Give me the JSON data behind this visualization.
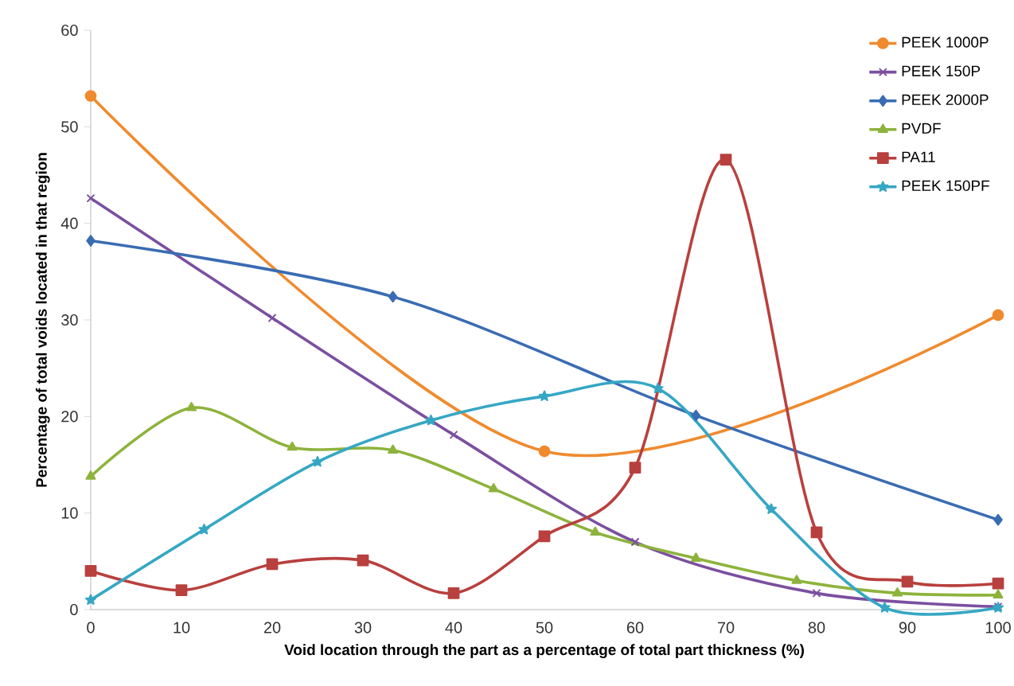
{
  "chart_data": {
    "type": "line",
    "xlabel": "Void location through the part as a percentage of total part thickness (%)",
    "ylabel": "Percentage of total voids located in that region",
    "xlim": [
      0,
      100
    ],
    "ylim": [
      0,
      60
    ],
    "xticks": [
      0,
      10,
      20,
      30,
      40,
      50,
      60,
      70,
      80,
      90,
      100
    ],
    "yticks": [
      0,
      10,
      20,
      30,
      40,
      50,
      60
    ],
    "grid": false,
    "legend": "top right",
    "series": [
      {
        "name": "PEEK 1000P",
        "color": "#f08a2e",
        "marker": "circle",
        "x": [
          0,
          50,
          100
        ],
        "values": [
          53.2,
          16.4,
          30.5
        ]
      },
      {
        "name": "PEEK 150P",
        "color": "#7b4fa0",
        "marker": "cross",
        "x": [
          0,
          20,
          40,
          60,
          80,
          100
        ],
        "values": [
          42.6,
          30.2,
          18.1,
          7,
          1.7,
          0.3
        ]
      },
      {
        "name": "PEEK 2000P",
        "color": "#3a6cb3",
        "marker": "diamond",
        "x": [
          0,
          33.3,
          66.7,
          100
        ],
        "values": [
          38.2,
          32.4,
          20.1,
          9.3
        ]
      },
      {
        "name": "PVDF",
        "color": "#8db33c",
        "marker": "triangle",
        "x": [
          0,
          11.1,
          22.2,
          33.3,
          44.4,
          55.6,
          66.7,
          77.8,
          88.9,
          100
        ],
        "values": [
          13.8,
          20.9,
          16.8,
          16.5,
          12.5,
          8,
          5.3,
          3,
          1.7,
          1.5
        ]
      },
      {
        "name": "PA11",
        "color": "#b8403e",
        "marker": "square",
        "x": [
          0,
          10,
          20,
          30,
          40,
          50,
          60,
          70,
          80,
          90,
          100
        ],
        "values": [
          4,
          2,
          4.7,
          5.1,
          1.7,
          7.6,
          14.7,
          46.6,
          8,
          2.9,
          2.7
        ]
      },
      {
        "name": "PEEK 150PF",
        "color": "#35a7c4",
        "marker": "star",
        "x": [
          0,
          12.5,
          25,
          37.5,
          50,
          62.5,
          75,
          87.5,
          100
        ],
        "values": [
          1,
          8.3,
          15.3,
          19.6,
          22.1,
          22.9,
          10.4,
          0.2,
          0.2
        ]
      }
    ]
  }
}
